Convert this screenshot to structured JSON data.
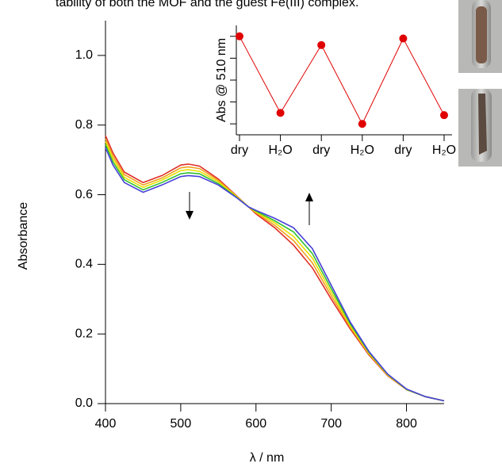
{
  "caption_fragment": "tability of both the MOF and the guest Fe(III) complex.",
  "chart_data": [
    {
      "type": "line",
      "xlabel": "λ / nm",
      "ylabel": "Absorbance",
      "x": [
        400,
        410,
        425,
        450,
        475,
        500,
        510,
        525,
        550,
        575,
        590,
        600,
        625,
        650,
        675,
        700,
        725,
        750,
        775,
        800,
        825,
        850
      ],
      "xlim": [
        400,
        850
      ],
      "xticks": [
        400,
        500,
        600,
        700,
        800
      ],
      "ylim": [
        0,
        1.1
      ],
      "yticks": [
        {
          "value": 0,
          "label": "0.0"
        },
        0.2,
        0.4,
        0.6,
        0.8,
        {
          "value": 1,
          "label": "1.0"
        }
      ],
      "series": [
        {
          "color": "#e03028",
          "values": [
            0.77,
            0.72,
            0.665,
            0.635,
            0.655,
            0.685,
            0.688,
            0.682,
            0.645,
            0.595,
            0.565,
            0.545,
            0.505,
            0.455,
            0.39,
            0.3,
            0.215,
            0.14,
            0.08,
            0.04,
            0.02,
            0.008
          ]
        },
        {
          "color": "#f0a020",
          "values": [
            0.761,
            0.711,
            0.658,
            0.628,
            0.648,
            0.677,
            0.68,
            0.675,
            0.641,
            0.594,
            0.565,
            0.548,
            0.512,
            0.468,
            0.404,
            0.31,
            0.22,
            0.143,
            0.081,
            0.04,
            0.02,
            0.008
          ]
        },
        {
          "color": "#e8e000",
          "values": [
            0.753,
            0.703,
            0.65,
            0.621,
            0.642,
            0.669,
            0.672,
            0.667,
            0.637,
            0.593,
            0.565,
            0.55,
            0.519,
            0.48,
            0.418,
            0.32,
            0.225,
            0.145,
            0.083,
            0.041,
            0.02,
            0.008
          ]
        },
        {
          "color": "#30c030",
          "values": [
            0.744,
            0.694,
            0.643,
            0.614,
            0.635,
            0.66,
            0.663,
            0.66,
            0.632,
            0.591,
            0.565,
            0.553,
            0.525,
            0.493,
            0.431,
            0.33,
            0.23,
            0.148,
            0.084,
            0.041,
            0.02,
            0.008
          ]
        },
        {
          "color": "#4840d8",
          "values": [
            0.735,
            0.685,
            0.635,
            0.607,
            0.628,
            0.652,
            0.655,
            0.652,
            0.628,
            0.59,
            0.565,
            0.555,
            0.532,
            0.505,
            0.445,
            0.34,
            0.235,
            0.15,
            0.085,
            0.042,
            0.02,
            0.008
          ]
        }
      ]
    },
    {
      "type": "line",
      "ylabel": "Abs @ 510 nm",
      "categories": [
        "dry",
        "H₂O",
        "dry",
        "H₂O",
        "dry",
        "H₂O"
      ],
      "values": [
        0.69,
        0.655,
        0.686,
        0.65,
        0.689,
        0.654
      ],
      "color": "#e00000",
      "ylim": [
        0.645,
        0.695
      ],
      "yticks": [
        0.65,
        0.66,
        0.67,
        0.68,
        0.69
      ]
    }
  ]
}
